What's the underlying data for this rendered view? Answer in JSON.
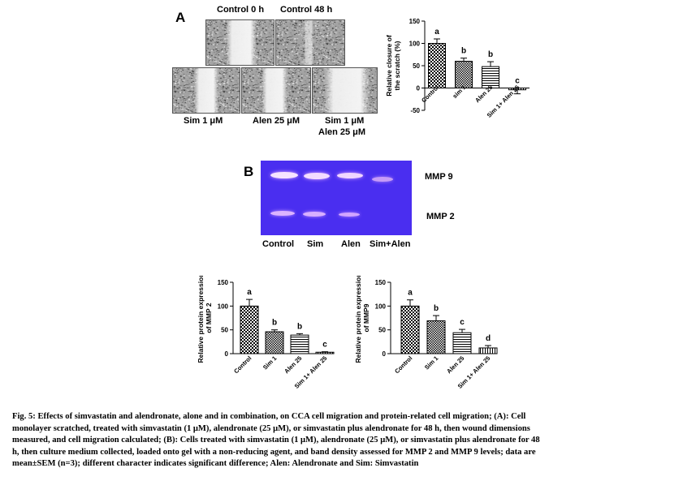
{
  "panel_a": {
    "letter": "A",
    "image_labels": {
      "control_0h": "Control 0 h",
      "control_48h": "Control 48 h",
      "sim": "Sim 1 μM",
      "alen": "Alen 25 μM",
      "combo_line1": "Sim 1 μM",
      "combo_line2": "Alen 25 μM"
    }
  },
  "panel_b": {
    "letter": "B",
    "band_labels": {
      "mmp9": "MMP 9",
      "mmp2": "MMP 2"
    },
    "lanes": [
      "Control",
      "Sim",
      "Alen",
      "Sim+Alen"
    ],
    "colors": {
      "gel": "#4a2ef0",
      "band": "#f4d8ff"
    }
  },
  "caption": {
    "lines": [
      "Fig. 5: Effects of simvastatin and alendronate, alone and in combination, on CCA cell migration and protein-related cell migration; (A): Cell",
      "monolayer scratched, treated with simvastatin (1 μM), alendronate (25 μM), or simvastatin plus alendronate for 48 h, then wound dimensions",
      "measured, and cell migration calculated; (B): Cells treated with simvastatin (1 μM), alendronate (25 μM), or simvastatin plus alendronate for 48",
      "h, then culture medium collected, loaded onto gel with a non-reducing agent, and band density assessed for MMP 2 and MMP 9 levels; data are",
      "mean±SEM (n=3); different character indicates significant difference; Alen: Alendronate and Sim: Simvastatin"
    ]
  },
  "chart_data": [
    {
      "type": "bar",
      "ylabel": "Relative closure of the scratch (%)",
      "categories": [
        "Control",
        "sim 1",
        "Alen 25",
        "Sim 1+ Alen 25"
      ],
      "values": [
        100,
        60,
        48,
        -4
      ],
      "errors": [
        10,
        7,
        11,
        9
      ],
      "letters": [
        "a",
        "b",
        "b",
        "c"
      ],
      "patterns": [
        "check",
        "dense-check",
        "hline",
        "vline"
      ],
      "ylim": [
        -50,
        150
      ],
      "yticks": [
        -50,
        0,
        50,
        100,
        150
      ]
    },
    {
      "type": "bar",
      "ylabel": "Relative protein expression of MMP 2",
      "categories": [
        "Control",
        "Sim 1",
        "Alen 25",
        "Sim 1+ Alen 25"
      ],
      "values": [
        100,
        46,
        39,
        3
      ],
      "errors": [
        14,
        4,
        3,
        1
      ],
      "letters": [
        "a",
        "b",
        "b",
        "c"
      ],
      "patterns": [
        "check",
        "dense-check",
        "hline",
        "vline"
      ],
      "ylim": [
        0,
        150
      ],
      "yticks": [
        0,
        50,
        100,
        150
      ]
    },
    {
      "type": "bar",
      "ylabel": "Relative protein expression of MMP9",
      "categories": [
        "Control",
        "Sim 1",
        "Alen 25",
        "Sim 1+ Alen 25"
      ],
      "values": [
        100,
        69,
        44,
        12
      ],
      "errors": [
        13,
        11,
        7,
        5
      ],
      "letters": [
        "a",
        "b",
        "c",
        "d"
      ],
      "patterns": [
        "check",
        "dense-check",
        "hline",
        "vline"
      ],
      "ylim": [
        0,
        150
      ],
      "yticks": [
        0,
        50,
        100,
        150
      ]
    }
  ]
}
